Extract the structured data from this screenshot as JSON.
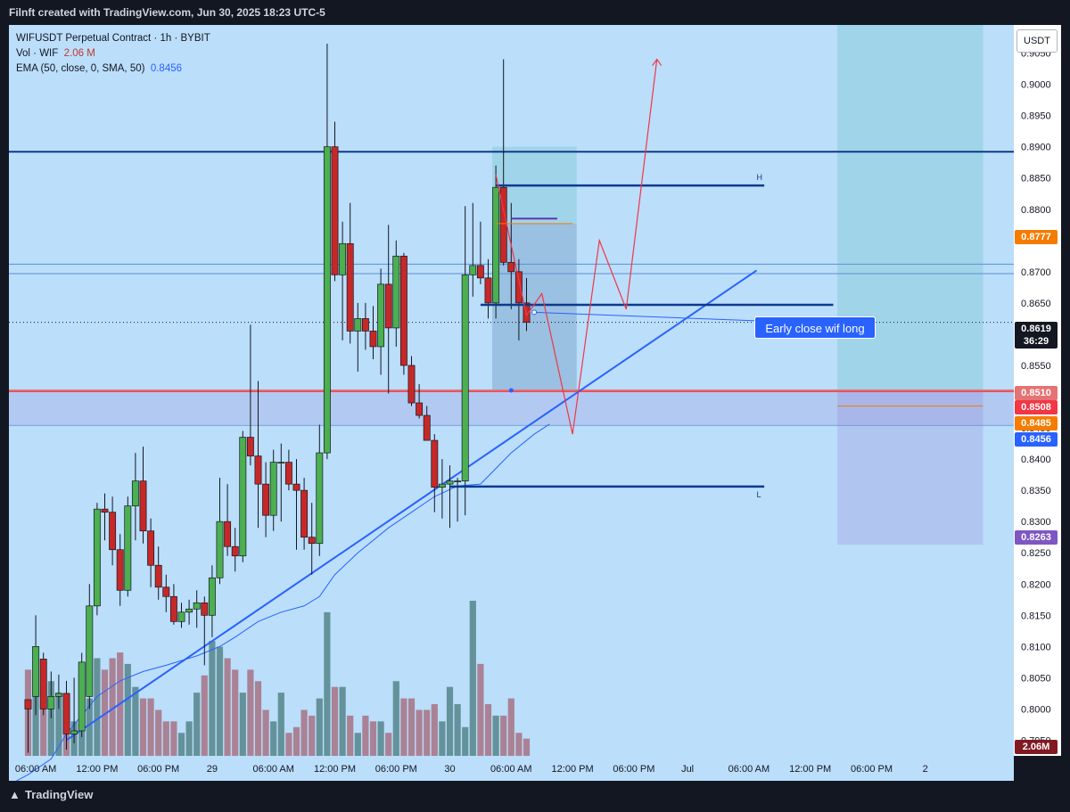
{
  "header": {
    "title": "Filnft created with TradingView.com, Jun 30, 2025 18:23 UTC-5"
  },
  "legend": {
    "symbol": "WIFUSDT Perpetual Contract · 1h · BYBIT",
    "vol_label": "Vol · WIF",
    "vol_value": "2.06 M",
    "ema_label": "EMA (50, close, 0, SMA, 50)",
    "ema_value": "0.8456"
  },
  "currency": "USDT",
  "annotation": "Early close wif long",
  "footer": {
    "brand": "TradingView"
  },
  "price_tags": [
    {
      "label": "0.8777",
      "color": "#f57c00"
    },
    {
      "label": "0.8510",
      "color": "#e57373"
    },
    {
      "label": "0.8508",
      "color": "#f23645"
    },
    {
      "label": "0.8485",
      "color": "#f57c00"
    },
    {
      "label": "0.8456",
      "color": "#2962ff"
    },
    {
      "label": "0.8263",
      "color": "#7e57c2"
    }
  ],
  "current_price": {
    "price": "0.8619",
    "countdown": "36:29"
  },
  "volume_tag": "2.06M",
  "colors": {
    "background": "#bbdefb",
    "up": "#4caf50",
    "down": "#c62828",
    "trend": "#2962ff",
    "projection": "#f23645"
  },
  "chart_data": {
    "type": "candlestick",
    "title": "WIFUSDT Perpetual Contract · 1h · BYBIT",
    "x_tick_labels": [
      "06:00 AM",
      "12:00 PM",
      "06:00 PM",
      "29",
      "06:00 AM",
      "12:00 PM",
      "06:00 PM",
      "30",
      "06:00 AM",
      "12:00 PM",
      "06:00 PM",
      "Jul",
      "06:00 AM",
      "12:00 PM",
      "06:00 PM",
      "2"
    ],
    "y_tick_labels": [
      "0.9050",
      "0.9000",
      "0.8950",
      "0.8900",
      "0.8850",
      "0.8800",
      "0.8750",
      "0.8700",
      "0.8650",
      "0.8600",
      "0.8550",
      "0.8500",
      "0.8450",
      "0.8400",
      "0.8350",
      "0.8300",
      "0.8250",
      "0.8200",
      "0.8150",
      "0.8100",
      "0.8050",
      "0.8000",
      "0.7950"
    ],
    "ylim": [
      0.7925,
      0.9095
    ],
    "candles": [
      [
        0.8015,
        0.8,
        0.801,
        0.793
      ],
      [
        0.802,
        0.81,
        0.815,
        0.799
      ],
      [
        0.808,
        0.8,
        0.809,
        0.799
      ],
      [
        0.8,
        0.802,
        0.806,
        0.7985
      ],
      [
        0.802,
        0.8025,
        0.8055,
        0.8
      ],
      [
        0.8025,
        0.796,
        0.8045,
        0.7935
      ],
      [
        0.796,
        0.7965,
        0.805,
        0.7945
      ],
      [
        0.7965,
        0.8075,
        0.809,
        0.7955
      ],
      [
        0.802,
        0.8165,
        0.82,
        0.8
      ],
      [
        0.8165,
        0.832,
        0.833,
        0.815
      ],
      [
        0.832,
        0.8315,
        0.8345,
        0.827
      ],
      [
        0.8315,
        0.8255,
        0.834,
        0.823
      ],
      [
        0.8255,
        0.819,
        0.828,
        0.8165
      ],
      [
        0.819,
        0.8325,
        0.834,
        0.818
      ],
      [
        0.8325,
        0.8365,
        0.841,
        0.827
      ],
      [
        0.8365,
        0.8285,
        0.842,
        0.8265
      ],
      [
        0.8285,
        0.823,
        0.8305,
        0.8195
      ],
      [
        0.823,
        0.8195,
        0.826,
        0.8175
      ],
      [
        0.8195,
        0.818,
        0.8215,
        0.8155
      ],
      [
        0.818,
        0.814,
        0.82,
        0.8135
      ],
      [
        0.814,
        0.8155,
        0.817,
        0.813
      ],
      [
        0.8155,
        0.816,
        0.8175,
        0.8135
      ],
      [
        0.816,
        0.817,
        0.819,
        0.813
      ],
      [
        0.817,
        0.815,
        0.818,
        0.807
      ],
      [
        0.815,
        0.821,
        0.823,
        0.8115
      ],
      [
        0.821,
        0.83,
        0.837,
        0.82
      ],
      [
        0.83,
        0.826,
        0.836,
        0.8245
      ],
      [
        0.826,
        0.8245,
        0.829,
        0.822
      ],
      [
        0.8245,
        0.8435,
        0.8445,
        0.8235
      ],
      [
        0.8435,
        0.8405,
        0.8615,
        0.839
      ],
      [
        0.8405,
        0.836,
        0.8525,
        0.829
      ],
      [
        0.836,
        0.831,
        0.8395,
        0.8275
      ],
      [
        0.831,
        0.8395,
        0.8415,
        0.8285
      ],
      [
        0.8395,
        0.8395,
        0.8425,
        0.83
      ],
      [
        0.8395,
        0.836,
        0.8415,
        0.835
      ],
      [
        0.836,
        0.835,
        0.84,
        0.8255
      ],
      [
        0.835,
        0.8275,
        0.837,
        0.8255
      ],
      [
        0.8275,
        0.8265,
        0.833,
        0.8215
      ],
      [
        0.8265,
        0.841,
        0.8455,
        0.8245
      ],
      [
        0.841,
        0.89,
        0.9065,
        0.84
      ],
      [
        0.89,
        0.8695,
        0.894,
        0.8685
      ],
      [
        0.8695,
        0.8745,
        0.878,
        0.859
      ],
      [
        0.8745,
        0.8605,
        0.881,
        0.8585
      ],
      [
        0.8605,
        0.8625,
        0.865,
        0.854
      ],
      [
        0.8625,
        0.8605,
        0.865,
        0.8575
      ],
      [
        0.8605,
        0.858,
        0.8645,
        0.856
      ],
      [
        0.858,
        0.868,
        0.8705,
        0.8535
      ],
      [
        0.868,
        0.861,
        0.8775,
        0.8505
      ],
      [
        0.861,
        0.8725,
        0.875,
        0.858
      ],
      [
        0.8725,
        0.855,
        0.873,
        0.8535
      ],
      [
        0.855,
        0.849,
        0.8565,
        0.8485
      ],
      [
        0.849,
        0.847,
        0.852,
        0.8465
      ],
      [
        0.847,
        0.843,
        0.8485,
        0.843
      ],
      [
        0.843,
        0.8355,
        0.844,
        0.8315
      ],
      [
        0.8355,
        0.836,
        0.84,
        0.8305
      ],
      [
        0.836,
        0.8365,
        0.839,
        0.829
      ],
      [
        0.8365,
        0.8365,
        0.837,
        0.83
      ],
      [
        0.8365,
        0.8695,
        0.8805,
        0.831
      ],
      [
        0.8695,
        0.871,
        0.881,
        0.866
      ],
      [
        0.871,
        0.869,
        0.878,
        0.868
      ],
      [
        0.869,
        0.865,
        0.872,
        0.8625
      ],
      [
        0.865,
        0.8835,
        0.887,
        0.8625
      ],
      [
        0.8835,
        0.8715,
        0.904,
        0.871
      ],
      [
        0.8715,
        0.87,
        0.881,
        0.864
      ],
      [
        0.87,
        0.865,
        0.872,
        0.859
      ],
      [
        0.865,
        0.8619,
        0.869,
        0.8605
      ]
    ],
    "volume": [
      30,
      26,
      22,
      26,
      22,
      14,
      12,
      14,
      20,
      34,
      30,
      34,
      36,
      32,
      24,
      20,
      20,
      16,
      12,
      12,
      8,
      12,
      22,
      28,
      40,
      38,
      34,
      30,
      22,
      30,
      26,
      16,
      12,
      22,
      8,
      10,
      16,
      14,
      20,
      50,
      24,
      24,
      14,
      8,
      14,
      12,
      12,
      8,
      26,
      20,
      20,
      16,
      16,
      18,
      12,
      24,
      18,
      10,
      54,
      32,
      18,
      14,
      14,
      20,
      8,
      6
    ],
    "ema": [
      [
        -3,
        0.7875
      ],
      [
        0,
        0.7895
      ],
      [
        3,
        0.792
      ],
      [
        5,
        0.796
      ],
      [
        7,
        0.799
      ],
      [
        9,
        0.802
      ],
      [
        12,
        0.8045
      ],
      [
        15,
        0.806
      ],
      [
        18,
        0.807
      ],
      [
        22,
        0.8085
      ],
      [
        25,
        0.81
      ],
      [
        27,
        0.8115
      ],
      [
        30,
        0.814
      ],
      [
        33,
        0.8155
      ],
      [
        36,
        0.8165
      ],
      [
        38,
        0.818
      ],
      [
        40,
        0.8215
      ],
      [
        43,
        0.825
      ],
      [
        47,
        0.829
      ],
      [
        50,
        0.8315
      ],
      [
        53,
        0.834
      ],
      [
        56,
        0.8357
      ],
      [
        59,
        0.836
      ],
      [
        61,
        0.8385
      ],
      [
        63,
        0.841
      ],
      [
        66,
        0.844
      ],
      [
        68,
        0.8456
      ]
    ],
    "levels": [
      {
        "price": 0.8892,
        "style": "horizontal-ray"
      },
      {
        "price": 0.851,
        "style": "horizontal-ray"
      },
      {
        "price": 0.8508,
        "style": "horizontal-ray"
      },
      {
        "price": 0.8712,
        "style": "horizontal-ray"
      },
      {
        "price": 0.8697,
        "style": "horizontal-ray"
      },
      {
        "price": 0.8454,
        "style": "horizontal-ray"
      }
    ],
    "h_line": {
      "label": "H",
      "price": 0.8838
    },
    "l_line": {
      "label": "L",
      "price": 0.8356
    },
    "entry_line_price": 0.8647,
    "long_position": {
      "entry": 0.851,
      "target": 0.89,
      "stop": 0.8263
    },
    "trendline": [
      [
        5,
        0.795
      ],
      [
        95,
        0.8702
      ]
    ],
    "projection": [
      [
        61,
        0.8855
      ],
      [
        65,
        0.863
      ],
      [
        67,
        0.8665
      ],
      [
        71,
        0.844
      ],
      [
        74.5,
        0.875
      ],
      [
        78,
        0.864
      ],
      [
        82,
        0.904
      ]
    ]
  }
}
